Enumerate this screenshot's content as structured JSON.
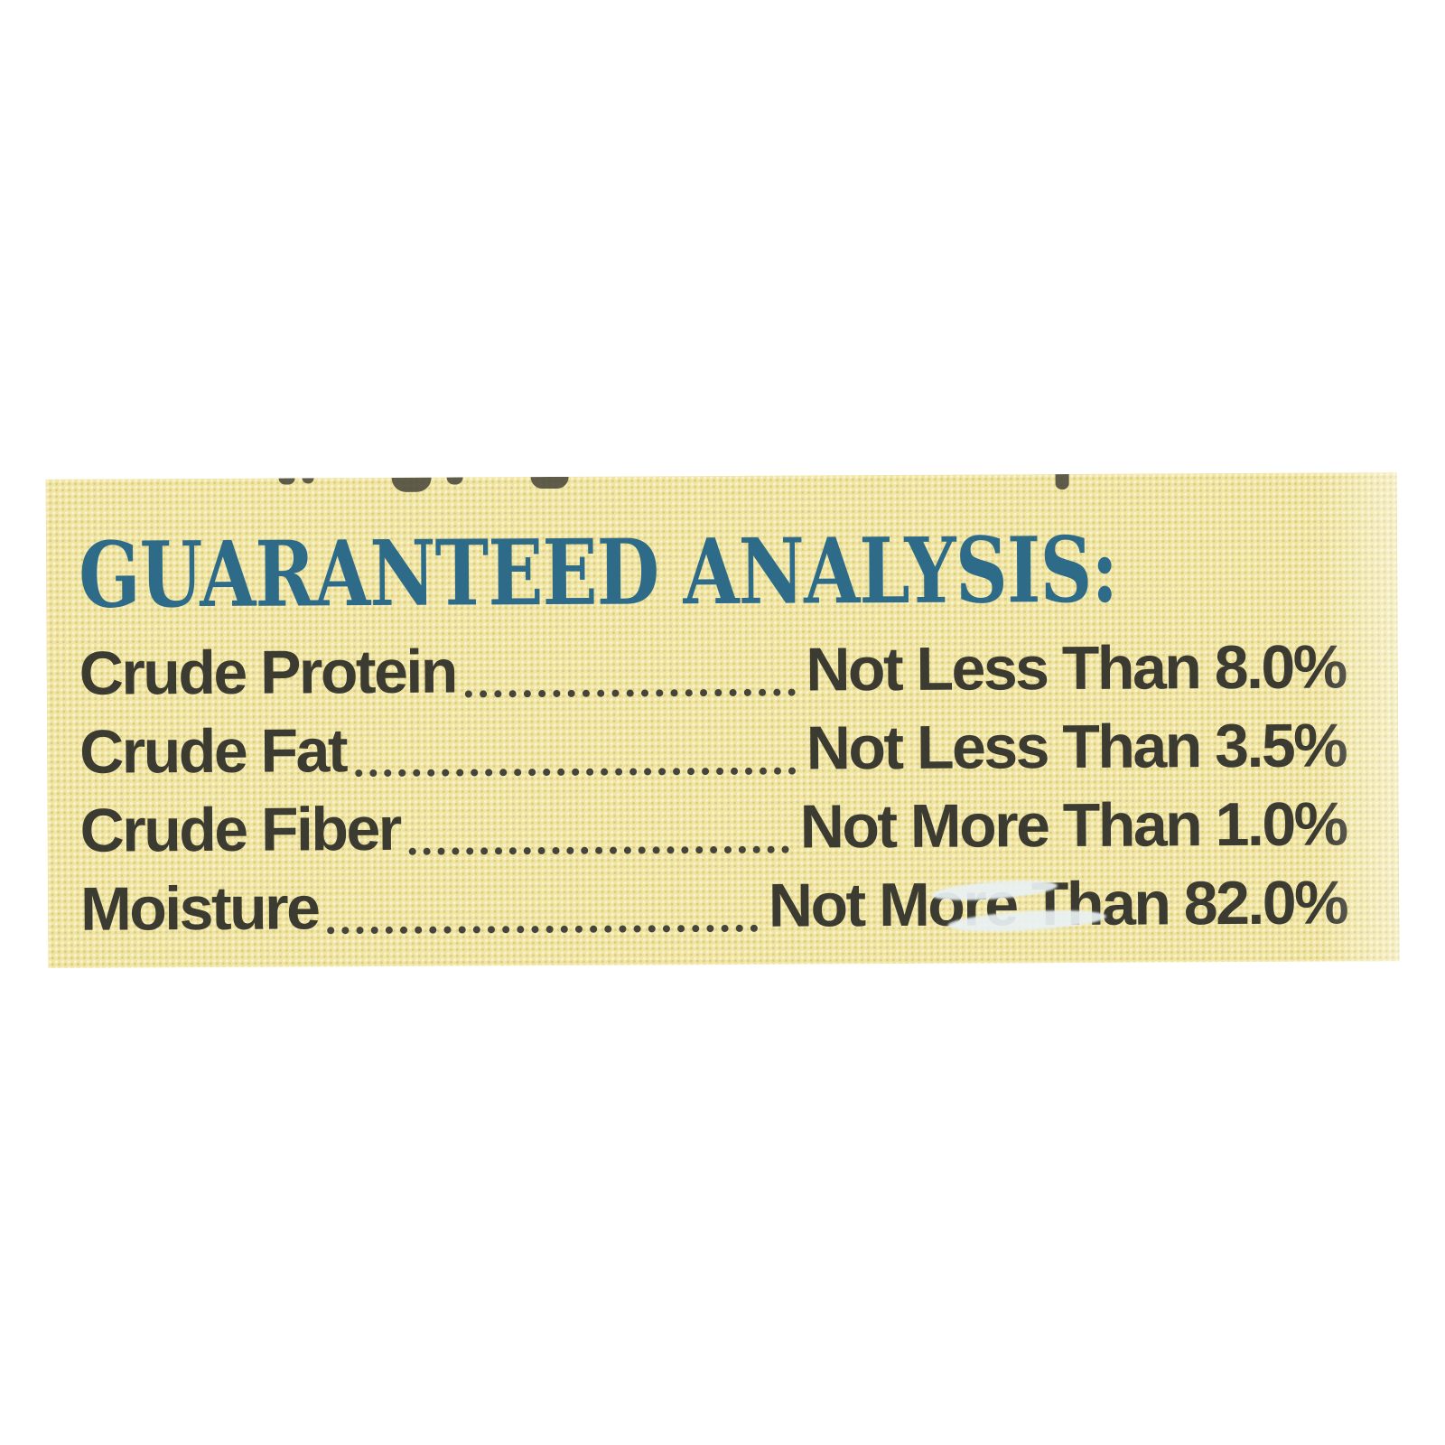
{
  "label": {
    "heading": "GUARANTEED ANALYSIS:",
    "rows": [
      {
        "name": "Crude Protein",
        "value": "Not Less Than 8.0%"
      },
      {
        "name": "Crude Fat",
        "value": "Not Less Than 3.5%"
      },
      {
        "name": "Crude Fiber",
        "value": "Not More Than 1.0%"
      },
      {
        "name": "Moisture",
        "value": "Not More Than 82.0%"
      }
    ],
    "colors": {
      "label_background": "#f0e5a1",
      "heading_text": "#2d6b88",
      "body_text": "#3c3b31",
      "page_background": "#ffffff"
    }
  }
}
